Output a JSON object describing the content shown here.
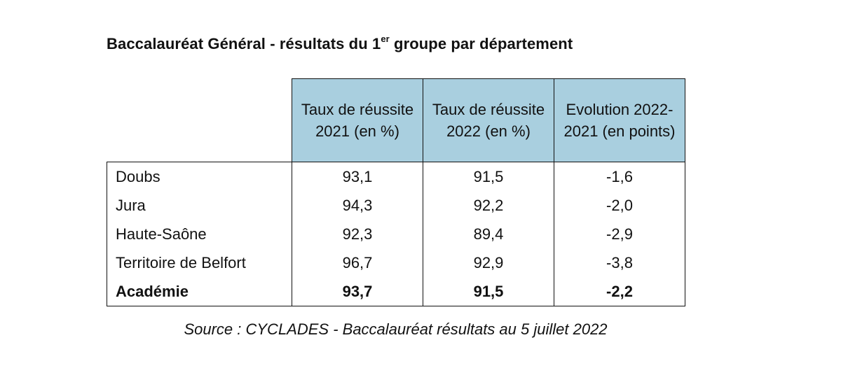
{
  "title": {
    "before": "Baccalauréat Général - résultats du 1",
    "sup": "er",
    "after": " groupe par département"
  },
  "table": {
    "headers": [
      "Taux de réussite 2021 (en %)",
      "Taux de réussite 2022 (en %)",
      "Evolution 2022-2021 (en points)"
    ],
    "rows": [
      {
        "name": "Doubs",
        "rate_2021": "93,1",
        "rate_2022": "91,5",
        "evolution": "-1,6"
      },
      {
        "name": "Jura",
        "rate_2021": "94,3",
        "rate_2022": "92,2",
        "evolution": "-2,0"
      },
      {
        "name": "Haute-Saône",
        "rate_2021": "92,3",
        "rate_2022": "89,4",
        "evolution": "-2,9"
      },
      {
        "name": "Territoire de Belfort",
        "rate_2021": "96,7",
        "rate_2022": "92,9",
        "evolution": "-3,8"
      },
      {
        "name": "Académie",
        "rate_2021": "93,7",
        "rate_2022": "91,5",
        "evolution": "-2,2"
      }
    ],
    "header_color": "#a9cfdf"
  },
  "source": "Source : CYCLADES - Baccalauréat résultats au 5 juillet 2022"
}
